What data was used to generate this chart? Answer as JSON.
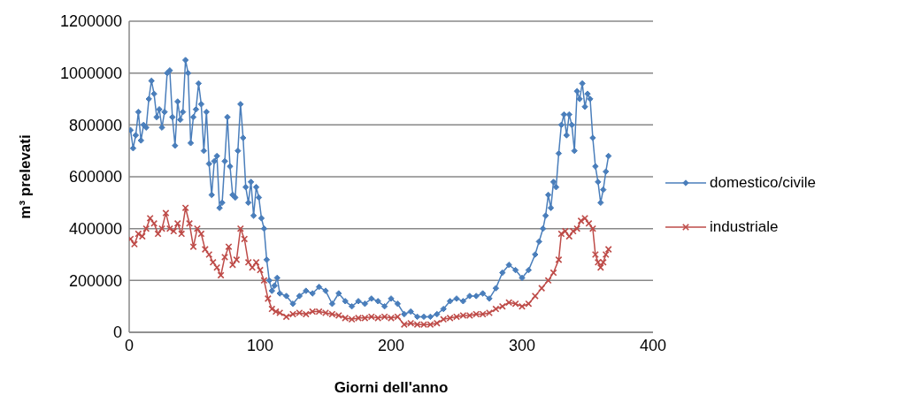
{
  "chart_data": {
    "type": "line",
    "xlabel": "Giorni dell'anno",
    "ylabel": "m³ prelevati",
    "xlim": [
      0,
      400
    ],
    "xticks": [
      0,
      100,
      200,
      300,
      400
    ],
    "ylim": [
      0,
      1200000
    ],
    "yticks": [
      0,
      200000,
      400000,
      600000,
      800000,
      1000000,
      1200000
    ],
    "grid": "y",
    "legend": "right",
    "line_style": "solid",
    "series": [
      {
        "name": "domestico/civile",
        "color": "#4a7ebb",
        "marker": "diamond",
        "x": [
          1,
          3,
          5,
          7,
          9,
          11,
          13,
          15,
          17,
          19,
          21,
          23,
          25,
          27,
          29,
          31,
          33,
          35,
          37,
          39,
          41,
          43,
          45,
          47,
          49,
          51,
          53,
          55,
          57,
          59,
          61,
          63,
          65,
          67,
          69,
          71,
          73,
          75,
          77,
          79,
          81,
          83,
          85,
          87,
          89,
          91,
          93,
          95,
          97,
          99,
          101,
          103,
          105,
          107,
          109,
          111,
          113,
          115,
          120,
          125,
          130,
          135,
          140,
          145,
          150,
          155,
          160,
          165,
          170,
          175,
          180,
          185,
          190,
          195,
          200,
          205,
          210,
          215,
          220,
          225,
          230,
          235,
          240,
          245,
          250,
          255,
          260,
          265,
          270,
          275,
          280,
          285,
          290,
          295,
          300,
          305,
          310,
          313,
          316,
          318,
          320,
          322,
          324,
          326,
          328,
          330,
          332,
          334,
          336,
          338,
          340,
          342,
          344,
          346,
          348,
          350,
          352,
          354,
          356,
          358,
          360,
          362,
          364,
          366
        ],
        "values": [
          780000,
          710000,
          760000,
          850000,
          740000,
          800000,
          790000,
          900000,
          970000,
          920000,
          830000,
          860000,
          790000,
          850000,
          1000000,
          1010000,
          830000,
          720000,
          890000,
          820000,
          850000,
          1050000,
          1000000,
          730000,
          830000,
          860000,
          960000,
          880000,
          700000,
          850000,
          650000,
          530000,
          660000,
          680000,
          480000,
          500000,
          660000,
          830000,
          640000,
          530000,
          520000,
          700000,
          880000,
          750000,
          560000,
          500000,
          580000,
          450000,
          560000,
          520000,
          440000,
          400000,
          280000,
          200000,
          160000,
          180000,
          210000,
          150000,
          140000,
          110000,
          140000,
          160000,
          150000,
          175000,
          160000,
          110000,
          150000,
          120000,
          100000,
          120000,
          110000,
          130000,
          120000,
          100000,
          130000,
          110000,
          70000,
          80000,
          60000,
          60000,
          60000,
          70000,
          90000,
          120000,
          130000,
          120000,
          140000,
          140000,
          150000,
          130000,
          170000,
          230000,
          260000,
          240000,
          210000,
          240000,
          300000,
          350000,
          400000,
          450000,
          530000,
          480000,
          580000,
          560000,
          690000,
          800000,
          840000,
          760000,
          840000,
          800000,
          700000,
          930000,
          900000,
          960000,
          870000,
          920000,
          900000,
          750000,
          640000,
          580000,
          500000,
          550000,
          620000,
          680000
        ]
      },
      {
        "name": "industriale",
        "color": "#be4b48",
        "marker": "cross",
        "x": [
          1,
          4,
          7,
          10,
          13,
          16,
          19,
          22,
          25,
          28,
          31,
          34,
          37,
          40,
          43,
          46,
          49,
          52,
          55,
          58,
          61,
          64,
          67,
          70,
          73,
          76,
          79,
          82,
          85,
          88,
          91,
          94,
          97,
          100,
          103,
          106,
          109,
          112,
          115,
          120,
          125,
          130,
          135,
          140,
          145,
          150,
          155,
          160,
          165,
          170,
          175,
          180,
          185,
          190,
          195,
          200,
          205,
          210,
          215,
          220,
          225,
          230,
          235,
          240,
          245,
          250,
          255,
          260,
          265,
          270,
          275,
          280,
          285,
          290,
          295,
          300,
          305,
          310,
          315,
          320,
          324,
          328,
          330,
          333,
          336,
          339,
          342,
          345,
          348,
          351,
          354,
          356,
          358,
          360,
          362,
          364,
          366
        ],
        "values": [
          360000,
          340000,
          380000,
          370000,
          400000,
          440000,
          420000,
          380000,
          400000,
          460000,
          400000,
          390000,
          420000,
          380000,
          480000,
          420000,
          330000,
          400000,
          380000,
          320000,
          300000,
          270000,
          250000,
          220000,
          290000,
          330000,
          260000,
          280000,
          400000,
          360000,
          270000,
          250000,
          270000,
          240000,
          200000,
          130000,
          90000,
          80000,
          75000,
          60000,
          70000,
          75000,
          70000,
          80000,
          80000,
          75000,
          70000,
          65000,
          55000,
          50000,
          55000,
          55000,
          60000,
          55000,
          60000,
          55000,
          60000,
          30000,
          35000,
          30000,
          30000,
          30000,
          35000,
          50000,
          55000,
          60000,
          65000,
          65000,
          70000,
          70000,
          75000,
          90000,
          100000,
          115000,
          110000,
          100000,
          110000,
          140000,
          170000,
          200000,
          230000,
          280000,
          380000,
          390000,
          370000,
          390000,
          400000,
          430000,
          440000,
          420000,
          400000,
          300000,
          270000,
          250000,
          270000,
          300000,
          320000
        ]
      }
    ]
  }
}
